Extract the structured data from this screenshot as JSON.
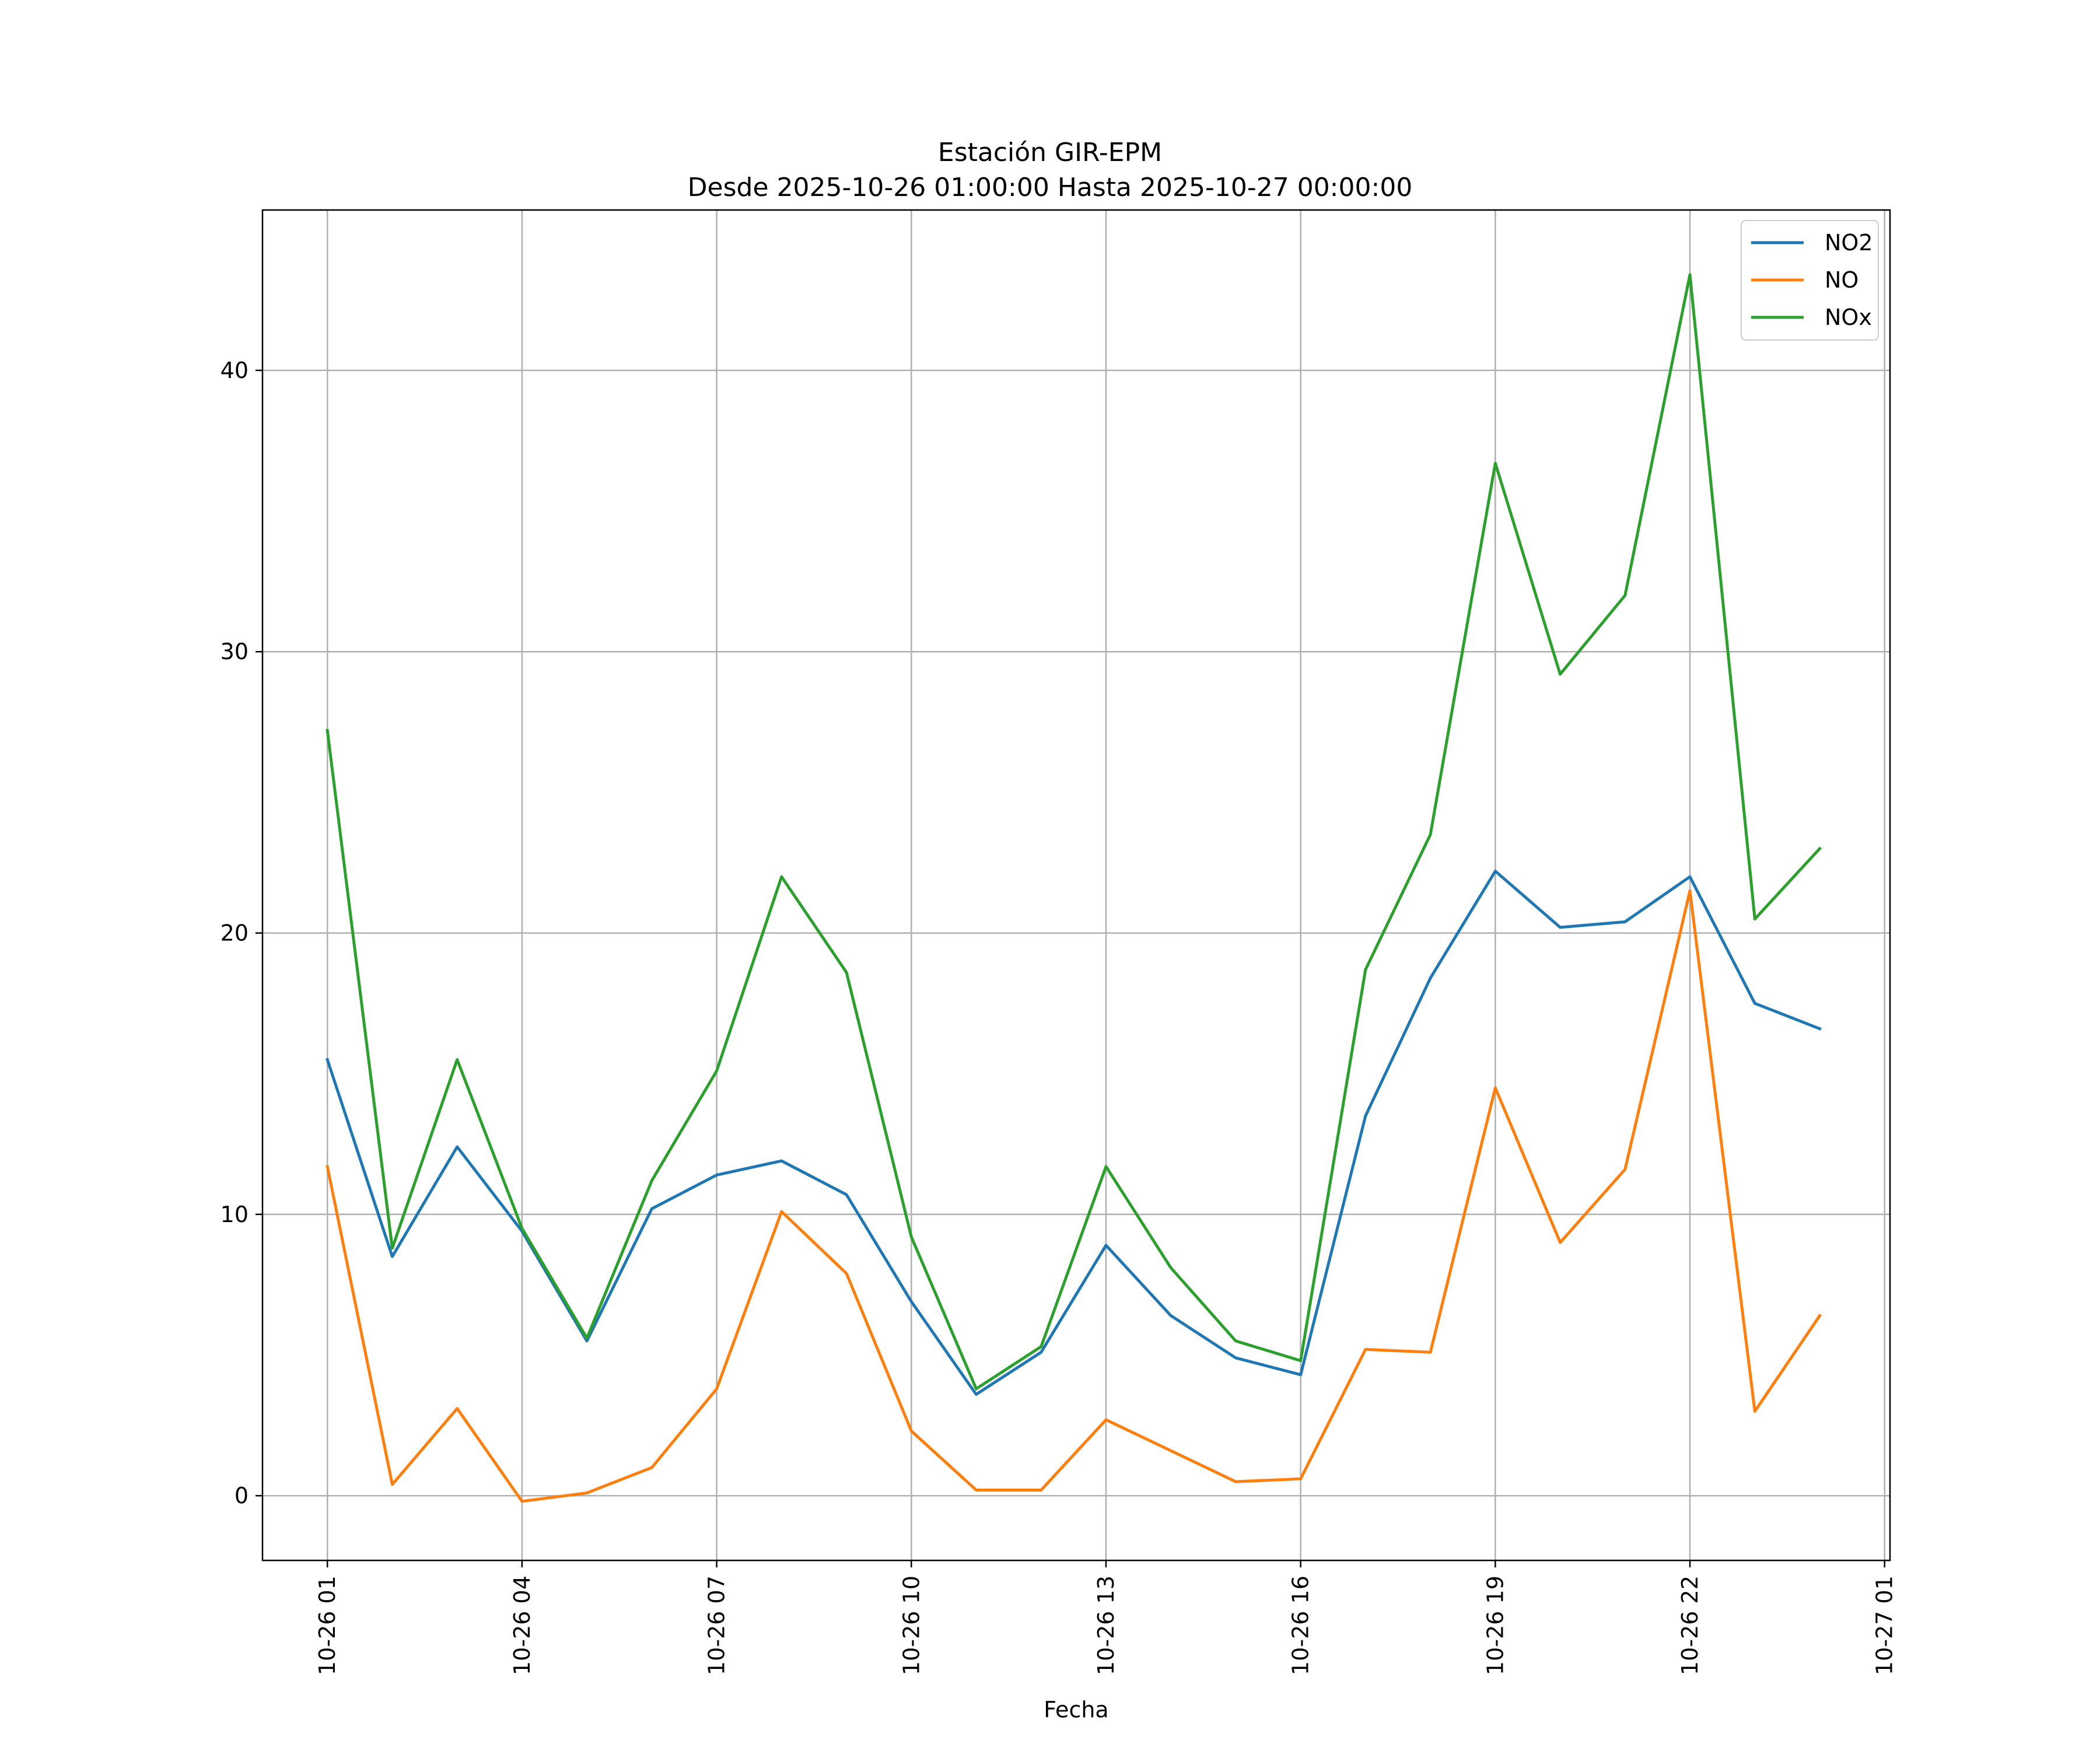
{
  "chart_data": {
    "type": "line",
    "title": "Estación GIR-EPM",
    "subtitle": "Desde 2025-10-26 01:00:00 Hasta 2025-10-27 00:00:00",
    "xlabel": "Fecha",
    "ylabel": "",
    "x": [
      "10-26 01",
      "10-26 02",
      "10-26 03",
      "10-26 04",
      "10-26 05",
      "10-26 06",
      "10-26 07",
      "10-26 08",
      "10-26 09",
      "10-26 10",
      "10-26 11",
      "10-26 12",
      "10-26 13",
      "10-26 14",
      "10-26 15",
      "10-26 16",
      "10-26 17",
      "10-26 18",
      "10-26 19",
      "10-26 20",
      "10-26 21",
      "10-26 22",
      "10-26 23",
      "10-27 00"
    ],
    "x_ticks": [
      "10-26 01",
      "10-26 04",
      "10-26 07",
      "10-26 10",
      "10-26 13",
      "10-26 16",
      "10-26 19",
      "10-26 22",
      "10-27 01"
    ],
    "y_ticks": [
      0,
      10,
      20,
      30,
      40
    ],
    "ylim": [
      -2.3,
      45.7
    ],
    "xlim": [
      "2025-10-26 00:00:00",
      "2025-10-27 01:05:00"
    ],
    "grid": true,
    "legend_position": "top-right",
    "series": [
      {
        "name": "NO2",
        "color": "#1f77b4",
        "values": [
          15.5,
          8.5,
          12.4,
          9.4,
          5.5,
          10.2,
          11.4,
          11.9,
          10.7,
          6.9,
          3.6,
          5.1,
          8.9,
          6.4,
          4.9,
          4.3,
          13.5,
          18.4,
          22.2,
          20.2,
          20.4,
          22.0,
          17.5,
          16.6
        ]
      },
      {
        "name": "NO",
        "color": "#ff7f0e",
        "values": [
          11.7,
          0.4,
          3.1,
          -0.2,
          0.1,
          1.0,
          3.8,
          10.1,
          7.9,
          2.3,
          0.2,
          0.2,
          2.7,
          1.6,
          0.5,
          0.6,
          5.2,
          5.1,
          14.5,
          9.0,
          11.6,
          21.5,
          3.0,
          6.4
        ]
      },
      {
        "name": "NOx",
        "color": "#2ca02c",
        "values": [
          27.2,
          8.8,
          15.5,
          9.5,
          5.6,
          11.2,
          15.1,
          22.0,
          18.6,
          9.2,
          3.8,
          5.3,
          11.7,
          8.1,
          5.5,
          4.8,
          18.7,
          23.5,
          36.7,
          29.2,
          32.0,
          43.4,
          20.5,
          23.0
        ]
      }
    ]
  }
}
